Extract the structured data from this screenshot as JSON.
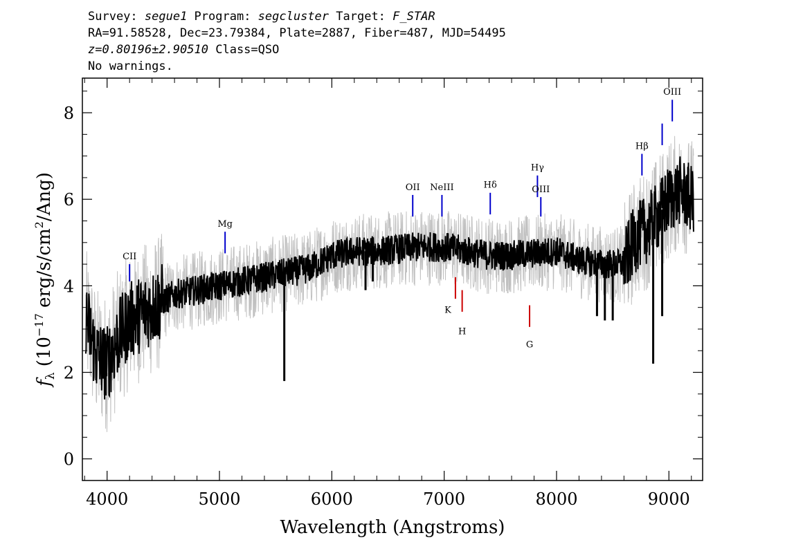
{
  "header": {
    "line1": {
      "survey_label": "Survey: ",
      "survey": "segue1",
      "program_label": " Program: ",
      "program": "segcluster",
      "target_label": " Target: ",
      "target": "F_STAR"
    },
    "line2": "RA=91.58528, Dec=23.79384, Plate=2887, Fiber=487, MJD=54495",
    "line3": {
      "z": "z=0.80196±2.90510",
      "class": " Class=QSO"
    },
    "line4": "No warnings."
  },
  "chart_data": {
    "type": "line",
    "xlabel": "Wavelength (Angstroms)",
    "ylabel": "f_λ (10^-17 erg/s/cm^2/Ang)",
    "ylabel_parts": {
      "f": "f",
      "lambda": "λ",
      "pre": " (10",
      "exp1": "−17",
      "mid": " erg/s/cm",
      "exp2": "2",
      "post": "/Ang)"
    },
    "xlim": [
      3780,
      9300
    ],
    "ylim": [
      -0.5,
      8.8
    ],
    "xticks": [
      4000,
      5000,
      6000,
      7000,
      8000,
      9000
    ],
    "yticks": [
      0,
      2,
      4,
      6,
      8
    ],
    "series": [
      {
        "color": "#c0c0c0",
        "role": "error",
        "knots": [
          [
            3800,
            3.4
          ],
          [
            3900,
            2.4
          ],
          [
            4000,
            2.2
          ],
          [
            4100,
            2.8
          ],
          [
            4200,
            3.2
          ],
          [
            4400,
            3.5
          ],
          [
            4600,
            3.8
          ],
          [
            4800,
            3.9
          ],
          [
            5000,
            4.0
          ],
          [
            5200,
            4.1
          ],
          [
            5400,
            4.2
          ],
          [
            5600,
            4.3
          ],
          [
            5800,
            4.4
          ],
          [
            6000,
            4.7
          ],
          [
            6200,
            4.8
          ],
          [
            6400,
            4.8
          ],
          [
            6600,
            4.85
          ],
          [
            6800,
            4.9
          ],
          [
            7000,
            4.9
          ],
          [
            7200,
            4.8
          ],
          [
            7400,
            4.7
          ],
          [
            7600,
            4.7
          ],
          [
            7800,
            4.75
          ],
          [
            8000,
            4.8
          ],
          [
            8200,
            4.6
          ],
          [
            8400,
            4.5
          ],
          [
            8600,
            4.5
          ],
          [
            8700,
            5.1
          ],
          [
            8800,
            5.3
          ],
          [
            8900,
            5.6
          ],
          [
            9000,
            6.0
          ],
          [
            9100,
            6.2
          ],
          [
            9200,
            6.0
          ]
        ]
      },
      {
        "color": "#000000",
        "role": "flux",
        "knots": [
          [
            3800,
            3.4
          ],
          [
            3900,
            2.4
          ],
          [
            4000,
            2.2
          ],
          [
            4100,
            2.8
          ],
          [
            4200,
            3.2
          ],
          [
            4400,
            3.5
          ],
          [
            4600,
            3.8
          ],
          [
            4800,
            3.9
          ],
          [
            5000,
            4.0
          ],
          [
            5200,
            4.1
          ],
          [
            5400,
            4.2
          ],
          [
            5600,
            4.3
          ],
          [
            5800,
            4.4
          ],
          [
            6000,
            4.7
          ],
          [
            6200,
            4.8
          ],
          [
            6400,
            4.8
          ],
          [
            6600,
            4.85
          ],
          [
            6800,
            4.9
          ],
          [
            7000,
            4.9
          ],
          [
            7200,
            4.8
          ],
          [
            7400,
            4.7
          ],
          [
            7600,
            4.7
          ],
          [
            7800,
            4.75
          ],
          [
            8000,
            4.8
          ],
          [
            8200,
            4.6
          ],
          [
            8400,
            4.5
          ],
          [
            8600,
            4.5
          ],
          [
            8700,
            5.1
          ],
          [
            8800,
            5.3
          ],
          [
            8900,
            5.6
          ],
          [
            9000,
            6.0
          ],
          [
            9100,
            6.2
          ],
          [
            9200,
            6.0
          ]
        ]
      }
    ],
    "spikes": [
      {
        "x": 5577,
        "y": 1.8
      },
      {
        "x": 6300,
        "y": 3.9
      },
      {
        "x": 6364,
        "y": 4.1
      },
      {
        "x": 8360,
        "y": 3.3
      },
      {
        "x": 8430,
        "y": 3.2
      },
      {
        "x": 8500,
        "y": 3.2
      },
      {
        "x": 8860,
        "y": 2.2
      },
      {
        "x": 8940,
        "y": 3.3
      }
    ],
    "lines": [
      {
        "label": "CII",
        "x": 4200,
        "y1": 4.5,
        "y2": 4.1,
        "color": "blue",
        "label_y": 4.55,
        "pos": "above"
      },
      {
        "label": "Mg",
        "x": 5050,
        "y1": 5.25,
        "y2": 4.75,
        "color": "blue",
        "label_y": 5.3,
        "pos": "above"
      },
      {
        "label": "OII",
        "x": 6720,
        "y1": 6.1,
        "y2": 5.6,
        "color": "blue",
        "label_y": 6.15,
        "pos": "above"
      },
      {
        "label": "NeIII",
        "x": 6980,
        "y1": 6.1,
        "y2": 5.6,
        "color": "blue",
        "label_y": 6.15,
        "pos": "above"
      },
      {
        "label": "Hδ",
        "x": 7410,
        "y1": 6.15,
        "y2": 5.65,
        "color": "blue",
        "label_y": 6.2,
        "pos": "above"
      },
      {
        "label": "Hγ",
        "x": 7830,
        "y1": 6.55,
        "y2": 6.05,
        "color": "blue",
        "label_y": 6.6,
        "pos": "above"
      },
      {
        "label": "OIII",
        "x": 7860,
        "y1": 6.05,
        "y2": 5.6,
        "color": "blue",
        "label_y": 6.1,
        "pos": "above"
      },
      {
        "label": "Hβ",
        "x": 8760,
        "y1": 7.05,
        "y2": 6.55,
        "color": "blue",
        "label_y": 7.1,
        "pos": "above"
      },
      {
        "label": "",
        "x": 8940,
        "y1": 7.75,
        "y2": 7.25,
        "color": "blue",
        "label_y": 7.8,
        "pos": "above"
      },
      {
        "label": "OIII",
        "x": 9030,
        "y1": 8.3,
        "y2": 7.8,
        "color": "blue",
        "label_y": 8.35,
        "pos": "above"
      },
      {
        "label": "K",
        "x": 7100,
        "y1": 4.2,
        "y2": 3.7,
        "color": "red",
        "label_y": 3.6,
        "pos": "left-below"
      },
      {
        "label": "H",
        "x": 7160,
        "y1": 3.9,
        "y2": 3.4,
        "color": "red",
        "label_y": 3.1,
        "pos": "below"
      },
      {
        "label": "G",
        "x": 7760,
        "y1": 3.55,
        "y2": 3.05,
        "color": "red",
        "label_y": 2.8,
        "pos": "below"
      }
    ],
    "colors": {
      "axes": "#000000",
      "error": "#c0c0c0",
      "flux": "#000000",
      "emission": "#0000cc",
      "absorption": "#cc0000"
    }
  }
}
